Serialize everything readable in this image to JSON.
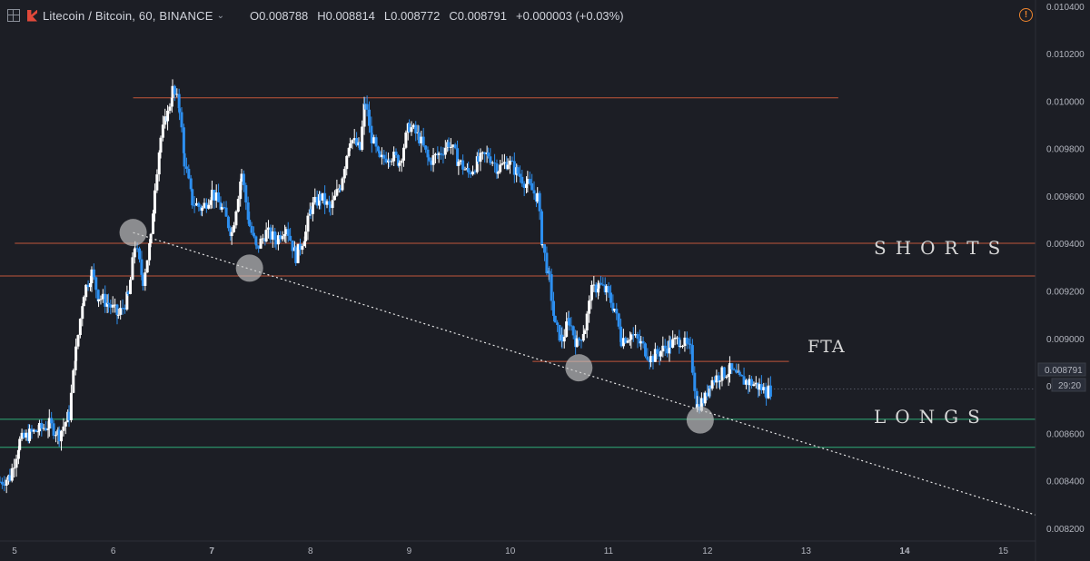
{
  "header": {
    "title": "Litecoin / Bitcoin, 60, BINANCE",
    "open": "O0.008788",
    "high": "H0.008814",
    "low": "L0.008772",
    "close": "C0.008791",
    "change": "+0.000003 (+0.03%)",
    "alert_icon": "!"
  },
  "price_badge": {
    "price": "0.008791",
    "countdown": "29:20"
  },
  "annotations": {
    "shorts": "SHORTS",
    "longs": "LONGS",
    "fta": "FTA"
  },
  "colors": {
    "up": "#ffffff",
    "down": "#2d8ff0",
    "resistance": "#c0553a",
    "support": "#2fae7a",
    "background": "#1c1e25"
  },
  "chart_data": {
    "type": "candlestick",
    "symbol": "Litecoin / Bitcoin",
    "interval": "60",
    "exchange": "BINANCE",
    "y_ticks": [
      0.0082,
      0.0084,
      0.0086,
      0.0088,
      0.009,
      0.0092,
      0.0094,
      0.0096,
      0.0098,
      0.01,
      0.0102,
      0.0104
    ],
    "y_tick_labels": [
      "0.008200",
      "0.008400",
      "0.008600",
      "0.008800",
      "0.009000",
      "0.009200",
      "0.009400",
      "0.009600",
      "0.009800",
      "0.010000",
      "0.010200",
      "0.010400"
    ],
    "ylim": [
      0.00815,
      0.01043
    ],
    "x_ticks": [
      "5",
      "6",
      "7",
      "8",
      "9",
      "10",
      "11",
      "12",
      "13",
      "14",
      "15"
    ],
    "x_bold": [
      "7",
      "14"
    ],
    "xlim": [
      4.85,
      15.35
    ],
    "series_close": [
      [
        4.85,
        0.0084
      ],
      [
        4.95,
        0.00842
      ],
      [
        5.05,
        0.00857
      ],
      [
        5.15,
        0.0086
      ],
      [
        5.25,
        0.00862
      ],
      [
        5.35,
        0.00864
      ],
      [
        5.45,
        0.0086
      ],
      [
        5.55,
        0.00868
      ],
      [
        5.62,
        0.00895
      ],
      [
        5.7,
        0.0092
      ],
      [
        5.78,
        0.00928
      ],
      [
        5.85,
        0.00918
      ],
      [
        5.95,
        0.00915
      ],
      [
        6.05,
        0.0091
      ],
      [
        6.15,
        0.00918
      ],
      [
        6.22,
        0.0094
      ],
      [
        6.3,
        0.00925
      ],
      [
        6.38,
        0.00942
      ],
      [
        6.42,
        0.00965
      ],
      [
        6.48,
        0.00985
      ],
      [
        6.55,
        0.00995
      ],
      [
        6.6,
        0.01005
      ],
      [
        6.67,
        0.00998
      ],
      [
        6.72,
        0.00975
      ],
      [
        6.8,
        0.00958
      ],
      [
        6.9,
        0.00955
      ],
      [
        7.0,
        0.00962
      ],
      [
        7.1,
        0.00955
      ],
      [
        7.2,
        0.00945
      ],
      [
        7.3,
        0.0097
      ],
      [
        7.38,
        0.00948
      ],
      [
        7.45,
        0.00938
      ],
      [
        7.55,
        0.00945
      ],
      [
        7.65,
        0.00942
      ],
      [
        7.75,
        0.00948
      ],
      [
        7.85,
        0.00935
      ],
      [
        7.95,
        0.00945
      ],
      [
        8.0,
        0.00955
      ],
      [
        8.1,
        0.0096
      ],
      [
        8.2,
        0.00955
      ],
      [
        8.3,
        0.00965
      ],
      [
        8.4,
        0.00985
      ],
      [
        8.5,
        0.0098
      ],
      [
        8.55,
        0.01
      ],
      [
        8.62,
        0.00985
      ],
      [
        8.7,
        0.00975
      ],
      [
        8.8,
        0.00978
      ],
      [
        8.9,
        0.00975
      ],
      [
        9.0,
        0.0099
      ],
      [
        9.1,
        0.00985
      ],
      [
        9.2,
        0.00975
      ],
      [
        9.3,
        0.00978
      ],
      [
        9.4,
        0.00983
      ],
      [
        9.5,
        0.00975
      ],
      [
        9.6,
        0.0097
      ],
      [
        9.7,
        0.00975
      ],
      [
        9.8,
        0.00978
      ],
      [
        9.9,
        0.00972
      ],
      [
        10.0,
        0.00975
      ],
      [
        10.1,
        0.0097
      ],
      [
        10.2,
        0.00965
      ],
      [
        10.3,
        0.0096
      ],
      [
        10.35,
        0.0094
      ],
      [
        10.42,
        0.00925
      ],
      [
        10.48,
        0.00905
      ],
      [
        10.55,
        0.009
      ],
      [
        10.62,
        0.00908
      ],
      [
        10.7,
        0.00898
      ],
      [
        10.78,
        0.00905
      ],
      [
        10.85,
        0.0092
      ],
      [
        10.92,
        0.00923
      ],
      [
        11.0,
        0.0092
      ],
      [
        11.08,
        0.00913
      ],
      [
        11.15,
        0.009
      ],
      [
        11.25,
        0.00902
      ],
      [
        11.35,
        0.00898
      ],
      [
        11.45,
        0.00892
      ],
      [
        11.55,
        0.00895
      ],
      [
        11.65,
        0.00898
      ],
      [
        11.75,
        0.009
      ],
      [
        11.85,
        0.00895
      ],
      [
        11.92,
        0.00872
      ],
      [
        12.0,
        0.00875
      ],
      [
        12.05,
        0.00882
      ],
      [
        12.15,
        0.00885
      ],
      [
        12.25,
        0.00887
      ],
      [
        12.35,
        0.00883
      ],
      [
        12.45,
        0.00882
      ],
      [
        12.55,
        0.0088
      ],
      [
        12.62,
        0.00878
      ],
      [
        12.68,
        0.00879
      ]
    ],
    "horizontal_levels": [
      {
        "price": 0.010018,
        "x_from": 6.2,
        "x_to": 13.35,
        "kind": "resistance"
      },
      {
        "price": 0.009405,
        "x_from": 5.0,
        "x_to": 15.35,
        "kind": "resistance"
      },
      {
        "price": 0.009267,
        "x_from": 4.85,
        "x_to": 15.35,
        "kind": "resistance"
      },
      {
        "price": 0.008907,
        "x_from": 10.25,
        "x_to": 12.85,
        "kind": "resistance"
      },
      {
        "price": 0.008663,
        "x_from": 4.85,
        "x_to": 15.35,
        "kind": "support"
      },
      {
        "price": 0.008545,
        "x_from": 4.85,
        "x_to": 15.35,
        "kind": "support"
      }
    ],
    "trendline": {
      "from": [
        6.2,
        0.00945
      ],
      "to": [
        15.35,
        0.00826
      ],
      "style": "dotted"
    },
    "touch_points": [
      [
        6.2,
        0.00945
      ],
      [
        7.38,
        0.0093
      ],
      [
        10.72,
        0.00888
      ],
      [
        11.95,
        0.00866
      ]
    ],
    "last_price": 0.008791
  }
}
